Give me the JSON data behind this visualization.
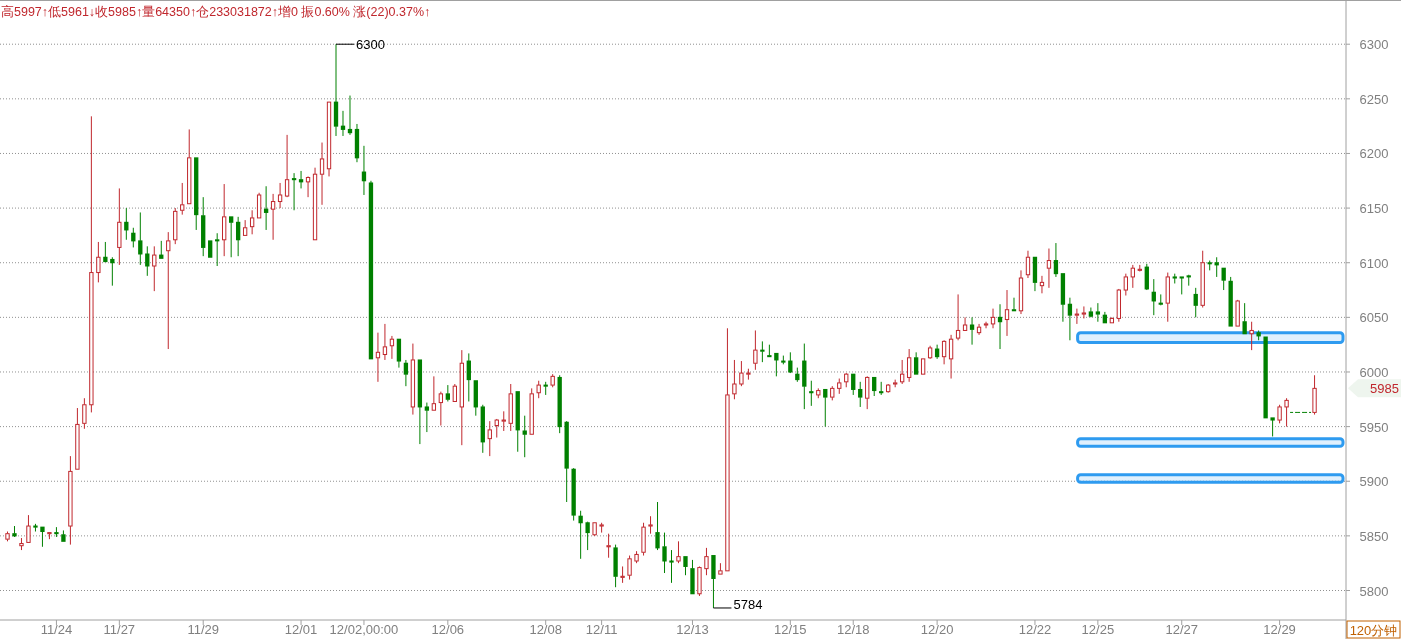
{
  "chart_data": {
    "type": "candlestick",
    "title": "高5997↑低5961↓收5985↑量64350↑仓233031872↑增0 振0.60% 涨(22)0.37%↑",
    "categories": [
      null,
      null,
      null,
      null,
      null,
      null,
      null,
      "11/24",
      null,
      null,
      null,
      null,
      null,
      null,
      null,
      null,
      "11/27",
      null,
      null,
      null,
      null,
      null,
      null,
      null,
      null,
      null,
      null,
      null,
      "11/29",
      null,
      null,
      null,
      null,
      null,
      null,
      null,
      null,
      null,
      null,
      null,
      null,
      null,
      "12/01",
      null,
      null,
      null,
      null,
      null,
      null,
      null,
      null,
      "12/02,00:00",
      null,
      null,
      null,
      null,
      null,
      null,
      null,
      null,
      null,
      null,
      null,
      "12/06",
      null,
      null,
      null,
      null,
      null,
      null,
      null,
      null,
      null,
      null,
      null,
      null,
      null,
      "12/08",
      null,
      null,
      null,
      null,
      null,
      null,
      null,
      "12/11",
      null,
      null,
      null,
      null,
      null,
      null,
      null,
      null,
      null,
      null,
      null,
      null,
      "12/13",
      null,
      null,
      null,
      null,
      null,
      null,
      null,
      null,
      null,
      null,
      null,
      null,
      null,
      "12/15",
      null,
      null,
      null,
      null,
      null,
      null,
      null,
      null,
      "12/18",
      null,
      null,
      null,
      null,
      null,
      null,
      null,
      null,
      null,
      null,
      null,
      "12/20",
      null,
      null,
      null,
      null,
      null,
      null,
      null,
      null,
      null,
      null,
      null,
      null,
      null,
      "12/22",
      null,
      null,
      null,
      null,
      null,
      null,
      null,
      null,
      "12/25",
      null,
      null,
      null,
      null,
      null,
      null,
      null,
      null,
      null,
      null,
      null,
      "12/27",
      null,
      null,
      null,
      null,
      null,
      null,
      null,
      null,
      null,
      null,
      null,
      null,
      null,
      "12/29",
      null,
      null,
      null,
      null,
      null
    ],
    "ohlc": [
      [
        5847,
        5854,
        5845,
        5852
      ],
      [
        5852,
        5859,
        5849,
        5850
      ],
      [
        5841,
        5848,
        5837,
        5843
      ],
      [
        5844,
        5869,
        5844,
        5859
      ],
      [
        5859,
        5861,
        5854,
        5858
      ],
      [
        5858,
        5858,
        5840,
        5854
      ],
      [
        5852,
        5853,
        5847,
        5853
      ],
      [
        5853,
        5858,
        5849,
        5852
      ],
      [
        5851,
        5855,
        5845,
        5845
      ],
      [
        5859,
        5923,
        5842,
        5909
      ],
      [
        5911,
        5967,
        5911,
        5952
      ],
      [
        5953,
        5976,
        5948,
        5970
      ],
      [
        5970,
        6234,
        5963,
        6091
      ],
      [
        6091,
        6119,
        6082,
        6105
      ],
      [
        6105,
        6119,
        6101,
        6101
      ],
      [
        6103,
        6105,
        6079,
        6100
      ],
      [
        6114,
        6168,
        6098,
        6137
      ],
      [
        6137,
        6150,
        6121,
        6130
      ],
      [
        6127,
        6132,
        6114,
        6120
      ],
      [
        6120,
        6146,
        6098,
        6108
      ],
      [
        6108,
        6115,
        6088,
        6097
      ],
      [
        6097,
        6115,
        6074,
        6107
      ],
      [
        6107,
        6120,
        6104,
        6104
      ],
      [
        6111,
        6128,
        6021,
        6120
      ],
      [
        6121,
        6150,
        6117,
        6147
      ],
      [
        6148,
        6173,
        6144,
        6153
      ],
      [
        6154,
        6222,
        6154,
        6196
      ],
      [
        6196,
        6196,
        6130,
        6144
      ],
      [
        6143,
        6160,
        6106,
        6114
      ],
      [
        6120,
        6120,
        6105,
        6105
      ],
      [
        6121,
        6127,
        6097,
        6120
      ],
      [
        6121,
        6172,
        6106,
        6142
      ],
      [
        6142,
        6142,
        6105,
        6137
      ],
      [
        6137,
        6142,
        6106,
        6121
      ],
      [
        6125,
        6139,
        6125,
        6132
      ],
      [
        6133,
        6148,
        6126,
        6141
      ],
      [
        6141,
        6164,
        6141,
        6162
      ],
      [
        6149,
        6170,
        6130,
        6146
      ],
      [
        6149,
        6163,
        6121,
        6156
      ],
      [
        6156,
        6173,
        6150,
        6162
      ],
      [
        6161,
        6217,
        6160,
        6176
      ],
      [
        6177,
        6182,
        6148,
        6176
      ],
      [
        6176,
        6184,
        6168,
        6174
      ],
      [
        6174,
        6179,
        6160,
        6178
      ],
      [
        6121,
        6187,
        6121,
        6181
      ],
      [
        6181,
        6210,
        6153,
        6195
      ],
      [
        6186,
        6247,
        6179,
        6247
      ],
      [
        6247,
        6300,
        6216,
        6225
      ],
      [
        6225,
        6239,
        6216,
        6222
      ],
      [
        6222,
        6253,
        6217,
        6219
      ],
      [
        6222,
        6227,
        6192,
        6196
      ],
      [
        6183,
        6207,
        6162,
        6175
      ],
      [
        6173,
        6175,
        6012,
        6012
      ],
      [
        6013,
        6036,
        5991,
        6018
      ],
      [
        6016,
        6044,
        6011,
        6023
      ],
      [
        6024,
        6033,
        6012,
        6030
      ],
      [
        6030,
        6030,
        6004,
        6010
      ],
      [
        6008,
        6011,
        5987,
        5998
      ],
      [
        5968,
        6026,
        5961,
        6011
      ],
      [
        6011,
        6011,
        5934,
        5968
      ],
      [
        5968,
        5972,
        5945,
        5965
      ],
      [
        5965,
        5996,
        5965,
        5971
      ],
      [
        5972,
        5982,
        5951,
        5980
      ],
      [
        5980,
        5988,
        5973,
        5975
      ],
      [
        5973,
        5989,
        5973,
        5987
      ],
      [
        5968,
        6020,
        5933,
        6008
      ],
      [
        6010,
        6017,
        5973,
        5993
      ],
      [
        5992,
        5992,
        5960,
        5968
      ],
      [
        5968,
        5970,
        5926,
        5936
      ],
      [
        5939,
        5955,
        5923,
        5947
      ],
      [
        5951,
        5957,
        5940,
        5956
      ],
      [
        5955,
        5964,
        5946,
        5956
      ],
      [
        5953,
        5989,
        5946,
        5980
      ],
      [
        5982,
        5982,
        5927,
        5947
      ],
      [
        5946,
        5960,
        5922,
        5943
      ],
      [
        5943,
        5985,
        5943,
        5980
      ],
      [
        5981,
        5992,
        5976,
        5988
      ],
      [
        5988,
        5991,
        5979,
        5987
      ],
      [
        5988,
        5998,
        5986,
        5996
      ],
      [
        5995,
        5997,
        5944,
        5950
      ],
      [
        5954,
        5955,
        5881,
        5912
      ],
      [
        5911,
        5912,
        5864,
        5869
      ],
      [
        5868,
        5873,
        5829,
        5862
      ],
      [
        5862,
        5863,
        5837,
        5853
      ],
      [
        5851,
        5862,
        5850,
        5862
      ],
      [
        5859,
        5862,
        5853,
        5860
      ],
      [
        5840,
        5852,
        5830,
        5841
      ],
      [
        5839,
        5842,
        5803,
        5813
      ],
      [
        5812,
        5822,
        5807,
        5813
      ],
      [
        5814,
        5832,
        5810,
        5829
      ],
      [
        5827,
        5836,
        5825,
        5833
      ],
      [
        5835,
        5862,
        5832,
        5858
      ],
      [
        5859,
        5868,
        5852,
        5860
      ],
      [
        5853,
        5881,
        5837,
        5839
      ],
      [
        5840,
        5853,
        5816,
        5827
      ],
      [
        5827,
        5837,
        5807,
        5826
      ],
      [
        5827,
        5845,
        5825,
        5831
      ],
      [
        5831,
        5831,
        5814,
        5822
      ],
      [
        5820,
        5828,
        5797,
        5797
      ],
      [
        5797,
        5822,
        5795,
        5821
      ],
      [
        5820,
        5839,
        5814,
        5831
      ],
      [
        5832,
        5832,
        5784,
        5811
      ],
      [
        5815,
        5825,
        5815,
        5818
      ],
      [
        5818,
        6040,
        5818,
        5979
      ],
      [
        5980,
        6011,
        5975,
        5989
      ],
      [
        5989,
        6010,
        5987,
        5999
      ],
      [
        5998,
        6003,
        5993,
        5999
      ],
      [
        6008,
        6038,
        6002,
        6020
      ],
      [
        6020,
        6028,
        6009,
        6019
      ],
      [
        6015,
        6025,
        6014,
        6014
      ],
      [
        6017,
        6017,
        5996,
        6011
      ],
      [
        6010,
        6015,
        6007,
        6009
      ],
      [
        6010,
        6018,
        5999,
        6000
      ],
      [
        5998,
        6004,
        5991,
        5993
      ],
      [
        6010,
        6026,
        5966,
        5987
      ],
      [
        5982,
        5992,
        5969,
        5981
      ],
      [
        5979,
        5985,
        5976,
        5983
      ],
      [
        5984,
        5984,
        5950,
        5977
      ],
      [
        5977,
        5987,
        5974,
        5985
      ],
      [
        5985,
        5994,
        5980,
        5990
      ],
      [
        5991,
        5999,
        5986,
        5998
      ],
      [
        5998,
        5998,
        5979,
        5984
      ],
      [
        5984,
        5991,
        5968,
        5977
      ],
      [
        5976,
        5996,
        5966,
        5995
      ],
      [
        5995,
        5995,
        5978,
        5983
      ],
      [
        5982,
        5991,
        5979,
        5981
      ],
      [
        5982,
        5989,
        5981,
        5988
      ],
      [
        5989,
        5993,
        5986,
        5990
      ],
      [
        5991,
        6011,
        5989,
        5998
      ],
      [
        5995,
        6021,
        5991,
        6013
      ],
      [
        6013,
        6018,
        5998,
        5998
      ],
      [
        5998,
        6012,
        5998,
        6012
      ],
      [
        6013,
        6024,
        6012,
        6022
      ],
      [
        6021,
        6025,
        6012,
        6014
      ],
      [
        6014,
        6029,
        6007,
        6028
      ],
      [
        6012,
        6034,
        5994,
        6030
      ],
      [
        6031,
        6071,
        6029,
        6038
      ],
      [
        6038,
        6050,
        6038,
        6043
      ],
      [
        6043,
        6050,
        6025,
        6039
      ],
      [
        6036,
        6044,
        6034,
        6041
      ],
      [
        6043,
        6046,
        6040,
        6044
      ],
      [
        6044,
        6058,
        6040,
        6050
      ],
      [
        6050,
        6062,
        6021,
        6046
      ],
      [
        6048,
        6075,
        6033,
        6057
      ],
      [
        6057,
        6068,
        6056,
        6056
      ],
      [
        6056,
        6093,
        6053,
        6086
      ],
      [
        6089,
        6111,
        6086,
        6105
      ],
      [
        6105,
        6105,
        6074,
        6082
      ],
      [
        6079,
        6088,
        6072,
        6082
      ],
      [
        6095,
        6113,
        6077,
        6102
      ],
      [
        6102,
        6118,
        6087,
        6090
      ],
      [
        6090,
        6090,
        6046,
        6062
      ],
      [
        6062,
        6068,
        6029,
        6052
      ],
      [
        6052,
        6058,
        6044,
        6053
      ],
      [
        6053,
        6060,
        6049,
        6054
      ],
      [
        6055,
        6059,
        6050,
        6051
      ],
      [
        6055,
        6063,
        6046,
        6053
      ],
      [
        6052,
        6055,
        6045,
        6045
      ],
      [
        6045,
        6050,
        6045,
        6049
      ],
      [
        6049,
        6076,
        6046,
        6075
      ],
      [
        6075,
        6090,
        6070,
        6087
      ],
      [
        6087,
        6098,
        6077,
        6095
      ],
      [
        6093,
        6098,
        6092,
        6094
      ],
      [
        6096,
        6099,
        6075,
        6076
      ],
      [
        6073,
        6085,
        6052,
        6065
      ],
      [
        6063,
        6071,
        6061,
        6062
      ],
      [
        6063,
        6091,
        6046,
        6087
      ],
      [
        6087,
        6090,
        6081,
        6086
      ],
      [
        6087,
        6087,
        6071,
        6086
      ],
      [
        6088,
        6089,
        6079,
        6087
      ],
      [
        6071,
        6077,
        6050,
        6061
      ],
      [
        6061,
        6111,
        6059,
        6100
      ],
      [
        6100,
        6102,
        6093,
        6099
      ],
      [
        6100,
        6105,
        6087,
        6098
      ],
      [
        6095,
        6095,
        6075,
        6084
      ],
      [
        6083,
        6087,
        6042,
        6042
      ],
      [
        6042,
        6066,
        6042,
        6065
      ],
      [
        6046,
        6063,
        6035,
        6035
      ],
      [
        6035,
        6046,
        6020,
        6038
      ],
      [
        6036,
        6038,
        6029,
        6033
      ],
      [
        6032,
        6032,
        5958,
        5958
      ],
      [
        5958,
        5958,
        5941,
        5956
      ],
      [
        5956,
        5970,
        5953,
        5968
      ],
      [
        5968,
        5976,
        5950,
        5974
      ],
      [
        5963,
        5963,
        5963,
        5963
      ],
      [
        5963,
        5963,
        5963,
        5963
      ],
      [
        5963,
        5963,
        5963,
        5963
      ],
      [
        5963,
        5997,
        5961,
        5985
      ]
    ],
    "ylim": [
      5773,
      6340
    ],
    "yticks": [
      5800,
      5850,
      5900,
      5950,
      6000,
      6050,
      6100,
      6150,
      6200,
      6250,
      6300
    ],
    "grid": "y",
    "annotations": [
      "6300",
      "5784",
      "120分钟",
      "5985"
    ],
    "bands": [
      {
        "axis": "y",
        "from": 6027,
        "to": 6036,
        "color": "#2e9bf0"
      },
      {
        "axis": "y",
        "from": 5932,
        "to": 5939,
        "color": "#2e9bf0"
      },
      {
        "axis": "y",
        "from": 5899,
        "to": 5906,
        "color": "#2e9bf0"
      }
    ]
  }
}
